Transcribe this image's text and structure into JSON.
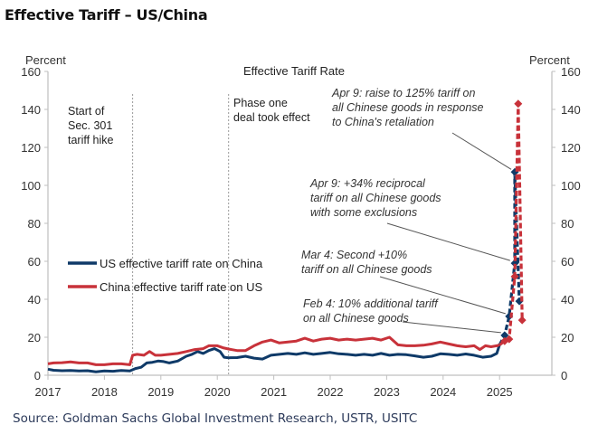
{
  "header": {
    "title": "Effective Tariff – US/China"
  },
  "footer": {
    "source": "Source: Goldman Sachs Global Investment Research, USTR, USITC"
  },
  "chart_data": {
    "type": "line",
    "title": "Effective Tariff Rate",
    "ylabel_left": "Percent",
    "ylabel_right": "Percent",
    "xlabel": "",
    "xlim": [
      2017,
      2025.9
    ],
    "ylim": [
      0,
      160
    ],
    "yticks": [
      0,
      20,
      40,
      60,
      80,
      100,
      120,
      140,
      160
    ],
    "xticks": [
      2017,
      2018,
      2019,
      2020,
      2021,
      2022,
      2023,
      2024,
      2025
    ],
    "xtick_labels": [
      "2017",
      "2018",
      "2019",
      "2020",
      "2021",
      "2022",
      "2023",
      "2024",
      "2025"
    ],
    "grid": false,
    "legend_position": "center-left",
    "colors": {
      "us": "#0f3a68",
      "china": "#c8323a",
      "axis": "#bfbfbf",
      "vline": "#9a9a9a",
      "leader": "#555555"
    },
    "vertical_markers": [
      {
        "x": 2018.5,
        "label": [
          "Start of",
          "Sec. 301",
          "tariff hike"
        ]
      },
      {
        "x": 2020.2,
        "label": [
          "Phase one",
          "deal took effect"
        ]
      }
    ],
    "series": [
      {
        "name": "US effective tariff rate on China",
        "key": "us",
        "x": [
          2017.0,
          2017.1,
          2017.25,
          2017.4,
          2017.55,
          2017.7,
          2017.85,
          2018.0,
          2018.15,
          2018.3,
          2018.45,
          2018.55,
          2018.65,
          2018.75,
          2018.85,
          2018.95,
          2019.05,
          2019.15,
          2019.3,
          2019.45,
          2019.55,
          2019.65,
          2019.75,
          2019.85,
          2019.95,
          2020.05,
          2020.12,
          2020.2,
          2020.35,
          2020.5,
          2020.65,
          2020.8,
          2020.95,
          2021.1,
          2021.25,
          2021.4,
          2021.55,
          2021.7,
          2021.85,
          2022.0,
          2022.15,
          2022.3,
          2022.45,
          2022.6,
          2022.75,
          2022.9,
          2023.05,
          2023.2,
          2023.35,
          2023.5,
          2023.65,
          2023.8,
          2023.95,
          2024.1,
          2024.25,
          2024.4,
          2024.55,
          2024.7,
          2024.85,
          2024.95,
          2025.0
        ],
        "values": [
          3.2,
          2.6,
          2.4,
          2.5,
          2.3,
          2.4,
          1.8,
          2.3,
          2.1,
          2.5,
          2.3,
          3.5,
          4.2,
          6.5,
          6.8,
          7.5,
          7.2,
          6.5,
          7.5,
          10.0,
          11.0,
          12.5,
          11.5,
          13.0,
          14.0,
          12.5,
          9.5,
          9.2,
          9.3,
          10.0,
          9.0,
          8.5,
          10.5,
          11.0,
          11.5,
          11.0,
          11.8,
          11.0,
          11.5,
          12.0,
          11.3,
          11.0,
          10.5,
          11.0,
          10.5,
          11.5,
          10.5,
          11.0,
          10.8,
          10.2,
          9.5,
          10.0,
          11.3,
          11.0,
          10.5,
          11.2,
          10.5,
          9.5,
          10.0,
          11.5,
          16.0
        ],
        "spike": {
          "x": [
            2025.0,
            2025.09,
            2025.17,
            2025.27,
            2025.27,
            2025.35
          ],
          "values": [
            16.0,
            21.0,
            31.0,
            59.0,
            107.0,
            39.0
          ]
        }
      },
      {
        "name": "China effective tariff rate on US",
        "key": "china",
        "x": [
          2017.0,
          2017.1,
          2017.25,
          2017.4,
          2017.55,
          2017.7,
          2017.85,
          2018.0,
          2018.15,
          2018.3,
          2018.45,
          2018.5,
          2018.58,
          2018.7,
          2018.8,
          2018.9,
          2019.0,
          2019.15,
          2019.3,
          2019.45,
          2019.6,
          2019.75,
          2019.85,
          2020.0,
          2020.1,
          2020.2,
          2020.35,
          2020.5,
          2020.65,
          2020.8,
          2020.95,
          2021.1,
          2021.25,
          2021.4,
          2021.55,
          2021.7,
          2021.85,
          2022.0,
          2022.15,
          2022.3,
          2022.45,
          2022.6,
          2022.75,
          2022.9,
          2023.05,
          2023.2,
          2023.35,
          2023.5,
          2023.65,
          2023.8,
          2023.95,
          2024.1,
          2024.25,
          2024.4,
          2024.55,
          2024.65,
          2024.75,
          2024.85,
          2024.95,
          2025.0
        ],
        "values": [
          6.0,
          6.5,
          6.6,
          7.0,
          6.5,
          6.5,
          5.5,
          5.5,
          6.0,
          6.0,
          5.5,
          10.5,
          11.0,
          10.5,
          12.5,
          10.5,
          10.5,
          11.0,
          11.5,
          12.5,
          13.5,
          14.0,
          15.5,
          15.5,
          14.5,
          13.8,
          13.0,
          13.0,
          15.5,
          17.5,
          18.5,
          17.0,
          17.5,
          18.0,
          19.5,
          18.0,
          19.0,
          19.5,
          18.5,
          19.0,
          18.5,
          19.0,
          19.5,
          18.5,
          20.0,
          16.0,
          15.5,
          15.5,
          15.8,
          16.5,
          17.5,
          16.5,
          15.5,
          15.0,
          15.5,
          13.5,
          15.5,
          15.0,
          15.5,
          16.0
        ],
        "spike": {
          "x": [
            2025.0,
            2025.09,
            2025.17,
            2025.27,
            2025.33,
            2025.4
          ],
          "values": [
            16.0,
            18.0,
            19.0,
            52.0,
            143.0,
            29.0
          ]
        }
      }
    ],
    "annotations": [
      {
        "lines": [
          "Apr 9: raise to 125% tariff on",
          "all Chinese goods in response",
          "to China's retaliation"
        ],
        "target_x": 2025.27,
        "target_y": 107
      },
      {
        "lines": [
          "Apr 9: +34% reciprocal",
          "tariff on all Chinese goods",
          "with some exclusions"
        ],
        "target_x": 2025.25,
        "target_y": 59
      },
      {
        "lines": [
          "Mar 4: Second +10%",
          "tariff on all Chinese goods"
        ],
        "target_x": 2025.17,
        "target_y": 31
      },
      {
        "lines": [
          "Feb 4: 10% additional tariff",
          "on all Chinese goods"
        ],
        "target_x": 2025.09,
        "target_y": 21
      }
    ]
  }
}
